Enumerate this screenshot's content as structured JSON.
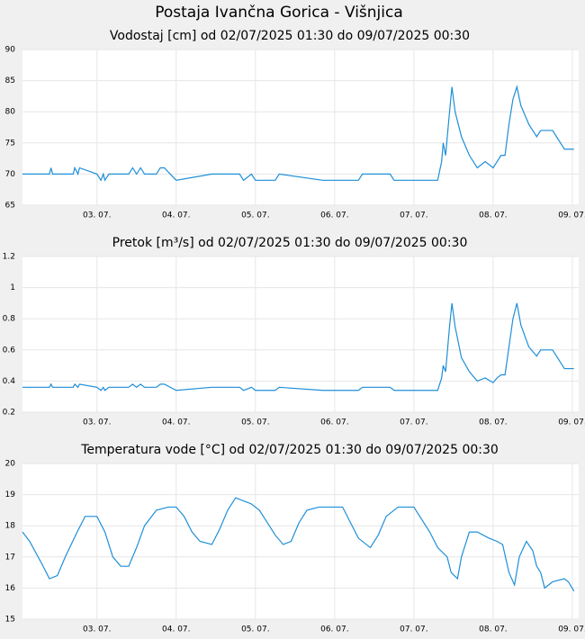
{
  "title": "Postaja Ivančna Gorica - Višnjica",
  "chart_data": [
    {
      "type": "line",
      "title": "Vodostaj [cm] od 02/07/2025 01:30 do 09/07/2025 00:30",
      "xlim": [
        2.06,
        9.08
      ],
      "xticks": [
        {
          "value": 3,
          "label": "03. 07."
        },
        {
          "value": 4,
          "label": "04. 07."
        },
        {
          "value": 5,
          "label": "05. 07."
        },
        {
          "value": 6,
          "label": "06. 07."
        },
        {
          "value": 7,
          "label": "07. 07."
        },
        {
          "value": 8,
          "label": "08. 07."
        },
        {
          "value": 9,
          "label": "09. 07."
        }
      ],
      "ylim": [
        65,
        90
      ],
      "yticks": [
        65,
        70,
        75,
        80,
        85,
        90
      ],
      "grid": true,
      "series": [
        {
          "color": "#1e8fd8",
          "x": [
            2.06,
            2.4,
            2.42,
            2.44,
            2.7,
            2.72,
            2.76,
            2.78,
            3.0,
            3.05,
            3.08,
            3.1,
            3.15,
            3.4,
            3.45,
            3.5,
            3.55,
            3.6,
            3.75,
            3.8,
            3.85,
            4.0,
            4.45,
            4.8,
            4.85,
            4.95,
            5.0,
            5.25,
            5.3,
            5.85,
            6.3,
            6.35,
            6.7,
            6.75,
            7.3,
            7.35,
            7.37,
            7.4,
            7.45,
            7.48,
            7.52,
            7.6,
            7.7,
            7.8,
            7.9,
            8.0,
            8.05,
            8.1,
            8.15,
            8.2,
            8.25,
            8.3,
            8.35,
            8.45,
            8.55,
            8.6,
            8.75,
            8.8,
            8.85,
            8.9,
            9.02
          ],
          "values": [
            70,
            70,
            71,
            70,
            70,
            71,
            70,
            71,
            70,
            69,
            70,
            69,
            70,
            70,
            71,
            70,
            71,
            70,
            70,
            71,
            71,
            69,
            70,
            70,
            69,
            70,
            69,
            69,
            70,
            69,
            69,
            70,
            70,
            69,
            69,
            72,
            75,
            73,
            80,
            84,
            80,
            76,
            73,
            71,
            72,
            71,
            72,
            73,
            73,
            78,
            82,
            84,
            81,
            78,
            76,
            77,
            77,
            76,
            75,
            74,
            74
          ]
        }
      ]
    },
    {
      "type": "line",
      "title": "Pretok [m³/s] od 02/07/2025 01:30 do 09/07/2025 00:30",
      "xlim": [
        2.06,
        9.08
      ],
      "xticks": [
        {
          "value": 3,
          "label": "03. 07."
        },
        {
          "value": 4,
          "label": "04. 07."
        },
        {
          "value": 5,
          "label": "05. 07."
        },
        {
          "value": 6,
          "label": "06. 07."
        },
        {
          "value": 7,
          "label": "07. 07."
        },
        {
          "value": 8,
          "label": "08. 07."
        },
        {
          "value": 9,
          "label": "09. 07."
        }
      ],
      "ylim": [
        0.2,
        1.2
      ],
      "yticks": [
        0.2,
        0.4,
        0.6,
        0.8,
        1,
        1.2
      ],
      "grid": true,
      "series": [
        {
          "color": "#1e8fd8",
          "x": [
            2.06,
            2.4,
            2.42,
            2.44,
            2.7,
            2.72,
            2.76,
            2.78,
            3.0,
            3.05,
            3.08,
            3.1,
            3.15,
            3.4,
            3.45,
            3.5,
            3.55,
            3.6,
            3.75,
            3.8,
            3.85,
            4.0,
            4.45,
            4.8,
            4.85,
            4.95,
            5.0,
            5.25,
            5.3,
            5.85,
            6.3,
            6.35,
            6.7,
            6.75,
            7.3,
            7.35,
            7.37,
            7.4,
            7.45,
            7.48,
            7.52,
            7.6,
            7.7,
            7.8,
            7.9,
            8.0,
            8.05,
            8.1,
            8.15,
            8.2,
            8.25,
            8.3,
            8.35,
            8.45,
            8.55,
            8.6,
            8.75,
            8.8,
            8.85,
            8.9,
            9.02
          ],
          "values": [
            0.36,
            0.36,
            0.38,
            0.36,
            0.36,
            0.38,
            0.36,
            0.38,
            0.36,
            0.34,
            0.36,
            0.34,
            0.36,
            0.36,
            0.38,
            0.36,
            0.38,
            0.36,
            0.36,
            0.38,
            0.38,
            0.34,
            0.36,
            0.36,
            0.34,
            0.36,
            0.34,
            0.34,
            0.36,
            0.34,
            0.34,
            0.36,
            0.36,
            0.34,
            0.34,
            0.42,
            0.5,
            0.46,
            0.75,
            0.9,
            0.75,
            0.55,
            0.46,
            0.4,
            0.42,
            0.39,
            0.42,
            0.44,
            0.44,
            0.62,
            0.8,
            0.9,
            0.76,
            0.62,
            0.56,
            0.6,
            0.6,
            0.56,
            0.52,
            0.48,
            0.48
          ]
        }
      ]
    },
    {
      "type": "line",
      "title": "Temperatura vode [°C] od 02/07/2025 01:30 do 09/07/2025 00:30",
      "xlim": [
        2.06,
        9.08
      ],
      "xticks": [
        {
          "value": 3,
          "label": "03. 07."
        },
        {
          "value": 4,
          "label": "04. 07."
        },
        {
          "value": 5,
          "label": "05. 07."
        },
        {
          "value": 6,
          "label": "06. 07."
        },
        {
          "value": 7,
          "label": "07. 07."
        },
        {
          "value": 8,
          "label": "08. 07."
        },
        {
          "value": 9,
          "label": "09. 07."
        }
      ],
      "ylim": [
        15,
        20
      ],
      "yticks": [
        15,
        16,
        17,
        18,
        19,
        20
      ],
      "grid": true,
      "series": [
        {
          "color": "#1e8fd8",
          "x": [
            2.06,
            2.15,
            2.3,
            2.4,
            2.5,
            2.6,
            2.75,
            2.85,
            3.0,
            3.1,
            3.2,
            3.3,
            3.4,
            3.5,
            3.6,
            3.75,
            3.9,
            4.0,
            4.1,
            4.2,
            4.3,
            4.45,
            4.55,
            4.65,
            4.75,
            4.85,
            4.95,
            5.05,
            5.15,
            5.25,
            5.35,
            5.45,
            5.55,
            5.65,
            5.8,
            6.1,
            6.2,
            6.3,
            6.45,
            6.55,
            6.65,
            6.8,
            7.0,
            7.1,
            7.2,
            7.3,
            7.42,
            7.47,
            7.55,
            7.6,
            7.7,
            7.8,
            7.95,
            8.05,
            8.12,
            8.2,
            8.27,
            8.33,
            8.42,
            8.5,
            8.55,
            8.6,
            8.65,
            8.75,
            8.9,
            8.95,
            9.02
          ],
          "values": [
            17.8,
            17.5,
            16.8,
            16.3,
            16.4,
            17.0,
            17.8,
            18.3,
            18.3,
            17.8,
            17.0,
            16.7,
            16.7,
            17.3,
            18.0,
            18.5,
            18.6,
            18.6,
            18.3,
            17.8,
            17.5,
            17.4,
            17.9,
            18.5,
            18.9,
            18.8,
            18.7,
            18.5,
            18.1,
            17.7,
            17.4,
            17.5,
            18.1,
            18.5,
            18.6,
            18.6,
            18.1,
            17.6,
            17.3,
            17.7,
            18.3,
            18.6,
            18.6,
            18.2,
            17.8,
            17.3,
            17.0,
            16.5,
            16.3,
            17.0,
            17.8,
            17.8,
            17.6,
            17.5,
            17.4,
            16.5,
            16.1,
            17.0,
            17.5,
            17.2,
            16.7,
            16.5,
            16.0,
            16.2,
            16.3,
            16.2,
            15.9
          ]
        }
      ]
    }
  ]
}
